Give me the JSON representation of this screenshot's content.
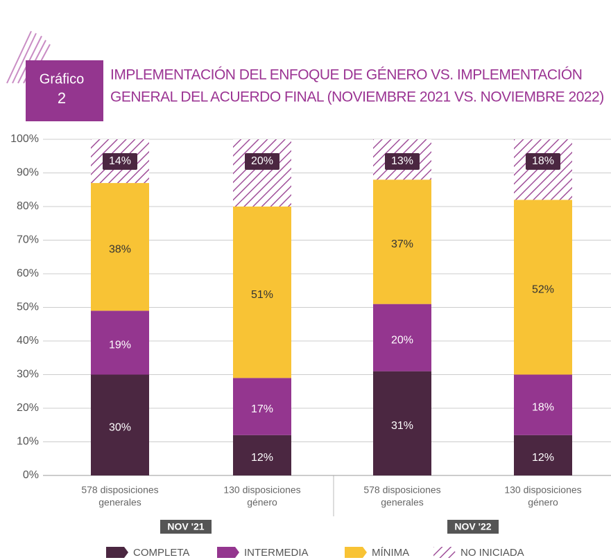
{
  "badge": {
    "label": "Gráfico",
    "number": "2"
  },
  "chart_data": {
    "type": "stacked_bar",
    "title": [
      "IMPLEMENTACIÓN DEL ENFOQUE DE GÉNERO VS. IMPLEMENTACIÓN",
      "GENERAL DEL ACUERDO FINAL (NOVIEMBRE 2021 VS. NOVIEMBRE 2022)"
    ],
    "categories": [
      [
        "578 disposiciones",
        "generales"
      ],
      [
        "130 disposiciones",
        "género"
      ],
      [
        "578 disposiciones",
        "generales"
      ],
      [
        "130 disposiciones",
        "género"
      ]
    ],
    "groups": [
      "NOV '21",
      "NOV '22"
    ],
    "series": [
      {
        "name": "COMPLETA",
        "color": "#4b2741",
        "values": [
          30,
          12,
          31,
          12
        ],
        "value_labels": [
          "30%",
          "12%",
          "31%",
          "12%"
        ]
      },
      {
        "name": "INTERMEDIA",
        "color": "#94368f",
        "values": [
          19,
          17,
          20,
          18
        ],
        "value_labels": [
          "19%",
          "17%",
          "20%",
          "18%"
        ]
      },
      {
        "name": "MÍNIMA",
        "color": "#f8c335",
        "values": [
          38,
          51,
          37,
          52
        ],
        "value_labels": [
          "38%",
          "51%",
          "37%",
          "52%"
        ]
      },
      {
        "name": "NO INICIADA",
        "color": "#a0509a",
        "hatch": true,
        "values": [
          14,
          20,
          13,
          18
        ],
        "value_labels": [
          "14%",
          "20%",
          "13%",
          "18%"
        ]
      }
    ],
    "ylim": [
      0,
      100
    ],
    "yticks": [
      {
        "value": 0,
        "label": "0%"
      },
      {
        "value": 10,
        "label": "10%"
      },
      {
        "value": 20,
        "label": "20%"
      },
      {
        "value": 30,
        "label": "30%"
      },
      {
        "value": 40,
        "label": "40%"
      },
      {
        "value": 50,
        "label": "50%"
      },
      {
        "value": 60,
        "label": "60%"
      },
      {
        "value": 70,
        "label": "70%"
      },
      {
        "value": 80,
        "label": "80%"
      },
      {
        "value": 90,
        "label": "90%"
      },
      {
        "value": 100,
        "label": "100%"
      }
    ],
    "grid": true
  }
}
